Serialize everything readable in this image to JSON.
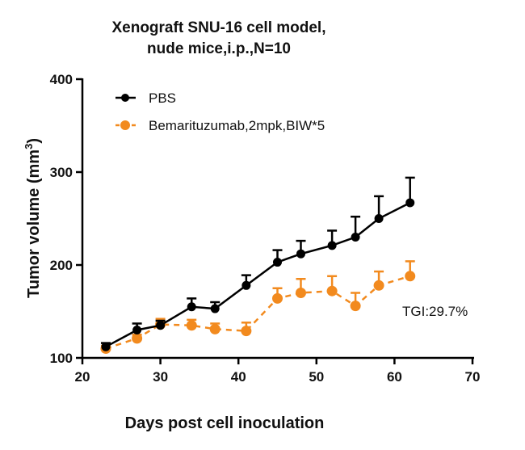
{
  "chart_data": {
    "type": "line",
    "title": [
      "Xenograft SNU-16 cell model,",
      "nude mice,i.p.,N=10"
    ],
    "xlabel": "Days post cell inoculation",
    "ylabel": "Tumor volume (mm",
    "ylabel_superscript": "3",
    "ylabel_close": ")",
    "xlim": [
      20,
      70
    ],
    "ylim": [
      100,
      400
    ],
    "xticks": [
      20,
      30,
      40,
      50,
      60,
      70
    ],
    "yticks": [
      100,
      200,
      300,
      400
    ],
    "grid": false,
    "legend_position": "top-left",
    "x": [
      23,
      27,
      30,
      34,
      37,
      41,
      45,
      48,
      52,
      55,
      58,
      62
    ],
    "series": [
      {
        "name": "PBS",
        "color": "#000000",
        "dashed": false,
        "values": [
          112,
          130,
          135,
          155,
          153,
          178,
          203,
          212,
          221,
          230,
          250,
          267
        ],
        "error": [
          4,
          7,
          5,
          9,
          7,
          11,
          13,
          14,
          16,
          22,
          24,
          27
        ]
      },
      {
        "name": "Bemarituzumab,2mpk,BIW*5",
        "color": "#F28A1E",
        "dashed": true,
        "values": [
          110,
          121,
          136,
          135,
          131,
          129,
          164,
          170,
          172,
          156,
          178,
          188
        ],
        "error": [
          3,
          4,
          6,
          6,
          6,
          9,
          11,
          15,
          16,
          14,
          15,
          16
        ]
      }
    ],
    "annotations": [
      {
        "text": "TGI:29.7%",
        "x": 62,
        "y": 150
      }
    ]
  }
}
